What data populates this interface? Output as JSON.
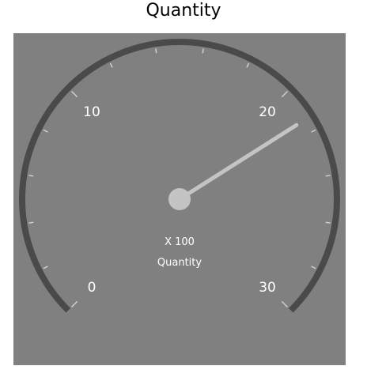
{
  "title": "Quantity",
  "gauge": {
    "min": 0,
    "max": 30,
    "value": 21.4,
    "start_angle_deg": 135,
    "sweep_deg": 270,
    "major_labels": [
      "0",
      "10",
      "20",
      "30"
    ],
    "minor_ticks_per_major": 5,
    "multiplier_label": "X 100",
    "caption": "Quantity",
    "colors": {
      "background": "#808080",
      "arc": "#4a4a4a",
      "ticks": "#d0d0d0",
      "labels": "#ffffff",
      "needle": "#c4c4c4",
      "cap": "#c4c4c4"
    }
  }
}
